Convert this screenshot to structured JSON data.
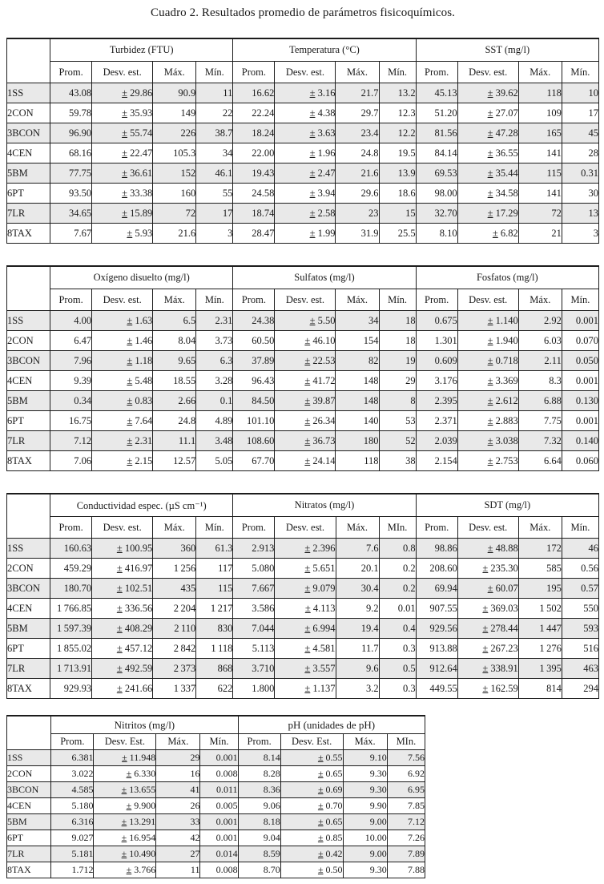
{
  "title": "Cuadro 2. Resultados promedio de parámetros fisicoquímicos.",
  "pm_sign": "±",
  "row_labels": [
    "1SS",
    "2CON",
    "3BCON",
    "4CEN",
    "5BM",
    "6PT",
    "7LR",
    "8TAX"
  ],
  "tables": [
    {
      "groups": [
        {
          "title": "Turbidez (FTU)",
          "headers": [
            "Prom.",
            "Desv. est.",
            "Máx.",
            "Mín."
          ],
          "rows": [
            [
              "43.08",
              "29.86",
              "90.9",
              "11"
            ],
            [
              "59.78",
              "35.93",
              "149",
              "22"
            ],
            [
              "96.90",
              "55.74",
              "226",
              "38.7"
            ],
            [
              "68.16",
              "22.47",
              "105.3",
              "34"
            ],
            [
              "77.75",
              "36.61",
              "152",
              "46.1"
            ],
            [
              "93.50",
              "33.38",
              "160",
              "55"
            ],
            [
              "34.65",
              "15.89",
              "72",
              "17"
            ],
            [
              "7.67",
              "5.93",
              "21.6",
              "3"
            ]
          ]
        },
        {
          "title": "Temperatura (°C)",
          "headers": [
            "Prom.",
            "Desv. est.",
            "Máx.",
            "Mín."
          ],
          "rows": [
            [
              "16.62",
              "3.16",
              "21.7",
              "13.2"
            ],
            [
              "22.24",
              "4.38",
              "29.7",
              "12.3"
            ],
            [
              "18.24",
              "3.63",
              "23.4",
              "12.2"
            ],
            [
              "22.00",
              "1.96",
              "24.8",
              "19.5"
            ],
            [
              "19.43",
              "2.47",
              "21.6",
              "13.9"
            ],
            [
              "24.58",
              "3.94",
              "29.6",
              "18.6"
            ],
            [
              "18.74",
              "2.58",
              "23",
              "15"
            ],
            [
              "28.47",
              "1.99",
              "31.9",
              "25.5"
            ]
          ]
        },
        {
          "title": "SST (mg/l)",
          "headers": [
            "Prom.",
            "Desv. est.",
            "Máx.",
            "Mín."
          ],
          "rows": [
            [
              "45.13",
              "39.62",
              "118",
              "10"
            ],
            [
              "51.20",
              "27.07",
              "109",
              "17"
            ],
            [
              "81.56",
              "47.28",
              "165",
              "45"
            ],
            [
              "84.14",
              "36.55",
              "141",
              "28"
            ],
            [
              "69.53",
              "35.44",
              "115",
              "0.31"
            ],
            [
              "98.00",
              "34.58",
              "141",
              "30"
            ],
            [
              "32.70",
              "17.29",
              "72",
              "13"
            ],
            [
              "8.10",
              "6.82",
              "21",
              "3"
            ]
          ]
        }
      ]
    },
    {
      "groups": [
        {
          "title": "Oxígeno disuelto (mg/l)",
          "headers": [
            "Prom.",
            "Desv. est.",
            "Máx.",
            "Mín."
          ],
          "rows": [
            [
              "4.00",
              "1.63",
              "6.5",
              "2.31"
            ],
            [
              "6.47",
              "1.46",
              "8.04",
              "3.73"
            ],
            [
              "7.96",
              "1.18",
              "9.65",
              "6.3"
            ],
            [
              "9.39",
              "5.48",
              "18.55",
              "3.28"
            ],
            [
              "0.34",
              "0.83",
              "2.66",
              "0.1"
            ],
            [
              "16.75",
              "7.64",
              "24.8",
              "4.89"
            ],
            [
              "7.12",
              "2.31",
              "11.1",
              "3.48"
            ],
            [
              "7.06",
              "2.15",
              "12.57",
              "5.05"
            ]
          ]
        },
        {
          "title": "Sulfatos (mg/l)",
          "headers": [
            "Prom.",
            "Desv. est.",
            "Máx.",
            "Mín."
          ],
          "rows": [
            [
              "24.38",
              "5.50",
              "34",
              "18"
            ],
            [
              "60.50",
              "46.10",
              "154",
              "18"
            ],
            [
              "37.89",
              "22.53",
              "82",
              "19"
            ],
            [
              "96.43",
              "41.72",
              "148",
              "29"
            ],
            [
              "84.50",
              "39.87",
              "148",
              "8"
            ],
            [
              "101.10",
              "26.34",
              "140",
              "53"
            ],
            [
              "108.60",
              "36.73",
              "180",
              "52"
            ],
            [
              "67.70",
              "24.14",
              "118",
              "38"
            ]
          ]
        },
        {
          "title": "Fosfatos (mg/l)",
          "headers": [
            "Prom.",
            "Desv. est.",
            "Máx.",
            "Mín."
          ],
          "rows": [
            [
              "0.675",
              "1.140",
              "2.92",
              "0.001"
            ],
            [
              "1.301",
              "1.940",
              "6.03",
              "0.070"
            ],
            [
              "0.609",
              "0.718",
              "2.11",
              "0.050"
            ],
            [
              "3.176",
              "3.369",
              "8.3",
              "0.001"
            ],
            [
              "2.395",
              "2.612",
              "6.88",
              "0.130"
            ],
            [
              "2.371",
              "2.883",
              "7.75",
              "0.001"
            ],
            [
              "2.039",
              "3.038",
              "7.32",
              "0.140"
            ],
            [
              "2.154",
              "2.753",
              "6.64",
              "0.060"
            ]
          ]
        }
      ]
    },
    {
      "groups": [
        {
          "title": "Conductividad espec. (µS cm⁻¹)",
          "headers": [
            "Prom.",
            "Desv. est.",
            "Máx.",
            "Mín."
          ],
          "rows": [
            [
              "160.63",
              "100.95",
              "360",
              "61.3"
            ],
            [
              "459.29",
              "416.97",
              "1 256",
              "117"
            ],
            [
              "180.70",
              "102.51",
              "435",
              "115"
            ],
            [
              "1 766.85",
              "336.56",
              "2 204",
              "1 217"
            ],
            [
              "1 597.39",
              "408.29",
              "2 110",
              "830"
            ],
            [
              "1 855.02",
              "457.12",
              "2 842",
              "1 118"
            ],
            [
              "1 713.91",
              "492.59",
              "2 373",
              "868"
            ],
            [
              "929.93",
              "241.66",
              "1 337",
              "622"
            ]
          ]
        },
        {
          "title": "Nitratos (mg/l)",
          "headers": [
            "Prom.",
            "Desv. est.",
            "Máx.",
            "MIn."
          ],
          "rows": [
            [
              "2.913",
              "2.396",
              "7.6",
              "0.8"
            ],
            [
              "5.080",
              "5.651",
              "20.1",
              "0.2"
            ],
            [
              "7.667",
              "9.079",
              "30.4",
              "0.2"
            ],
            [
              "3.586",
              "4.113",
              "9.2",
              "0.01"
            ],
            [
              "7.044",
              "6.994",
              "19.4",
              "0.4"
            ],
            [
              "5.113",
              "4.581",
              "11.7",
              "0.3"
            ],
            [
              "3.710",
              "3.557",
              "9.6",
              "0.5"
            ],
            [
              "1.800",
              "1.137",
              "3.2",
              "0.3"
            ]
          ]
        },
        {
          "title": "SDT (mg/l)",
          "headers": [
            "Prom.",
            "Desv. est.",
            "Máx.",
            "Mín."
          ],
          "rows": [
            [
              "98.86",
              "48.88",
              "172",
              "46"
            ],
            [
              "208.60",
              "235.30",
              "585",
              "0.56"
            ],
            [
              "69.94",
              "60.07",
              "195",
              "0.57"
            ],
            [
              "907.55",
              "369.03",
              "1 502",
              "550"
            ],
            [
              "929.56",
              "278.44",
              "1 447",
              "593"
            ],
            [
              "913.88",
              "267.23",
              "1 276",
              "516"
            ],
            [
              "912.64",
              "338.91",
              "1 395",
              "463"
            ],
            [
              "449.55",
              "162.59",
              "814",
              "294"
            ]
          ]
        }
      ]
    },
    {
      "groups": [
        {
          "title": "Nitritos (mg/l)",
          "headers": [
            "Prom.",
            "Desv. Est.",
            "Máx.",
            "Mín."
          ],
          "rows": [
            [
              "6.381",
              "11.948",
              "29",
              "0.001"
            ],
            [
              "3.022",
              "6.330",
              "16",
              "0.008"
            ],
            [
              "4.585",
              "13.655",
              "41",
              "0.011"
            ],
            [
              "5.180",
              "9.900",
              "26",
              "0.005"
            ],
            [
              "6.316",
              "13.291",
              "33",
              "0.001"
            ],
            [
              "9.027",
              "16.954",
              "42",
              "0.001"
            ],
            [
              "5.181",
              "10.490",
              "27",
              "0.014"
            ],
            [
              "1.712",
              "3.766",
              "11",
              "0.008"
            ]
          ]
        },
        {
          "title": "pH (unidades de pH)",
          "headers": [
            "Prom.",
            "Desv. Est.",
            "Máx.",
            "MIn."
          ],
          "rows": [
            [
              "8.14",
              "0.55",
              "9.10",
              "7.56"
            ],
            [
              "8.28",
              "0.65",
              "9.30",
              "6.92"
            ],
            [
              "8.36",
              "0.69",
              "9.30",
              "6.95"
            ],
            [
              "9.06",
              "0.70",
              "9.90",
              "7.85"
            ],
            [
              "8.18",
              "0.65",
              "9.00",
              "7.12"
            ],
            [
              "9.04",
              "0.85",
              "10.00",
              "7.26"
            ],
            [
              "8.59",
              "0.42",
              "9.00",
              "7.89"
            ],
            [
              "8.70",
              "0.50",
              "9.30",
              "7.88"
            ]
          ]
        }
      ]
    }
  ]
}
